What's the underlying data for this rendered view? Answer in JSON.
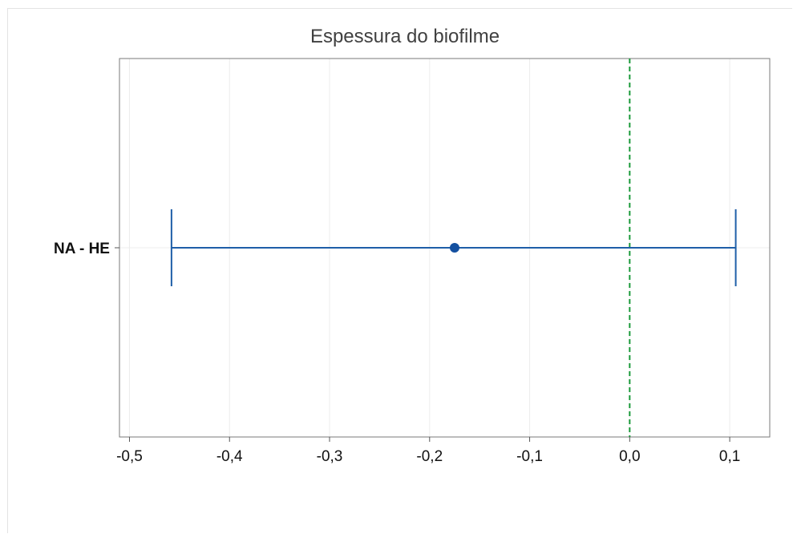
{
  "chart_data": {
    "type": "interval",
    "title": "Espessura do biofilme",
    "xlabel": "",
    "ylabel": "",
    "xlim": [
      -0.51,
      0.14
    ],
    "xticks": [
      -0.5,
      -0.4,
      -0.3,
      -0.2,
      -0.1,
      0.0,
      0.1
    ],
    "xtick_labels": [
      "-0,5",
      "-0,4",
      "-0,3",
      "-0,2",
      "-0,1",
      "0,0",
      "0,1"
    ],
    "categories": [
      "NA - HE"
    ],
    "intervals": [
      {
        "label": "NA - HE",
        "estimate": -0.175,
        "lower": -0.458,
        "upper": 0.106
      }
    ],
    "reference_line": {
      "x": 0.0,
      "style": "dashed",
      "color": "#1a9a3a"
    },
    "grid": true,
    "colors": {
      "interval": "#1f5fa8",
      "point": "#1450a0",
      "reference": "#1a9a3a"
    }
  }
}
